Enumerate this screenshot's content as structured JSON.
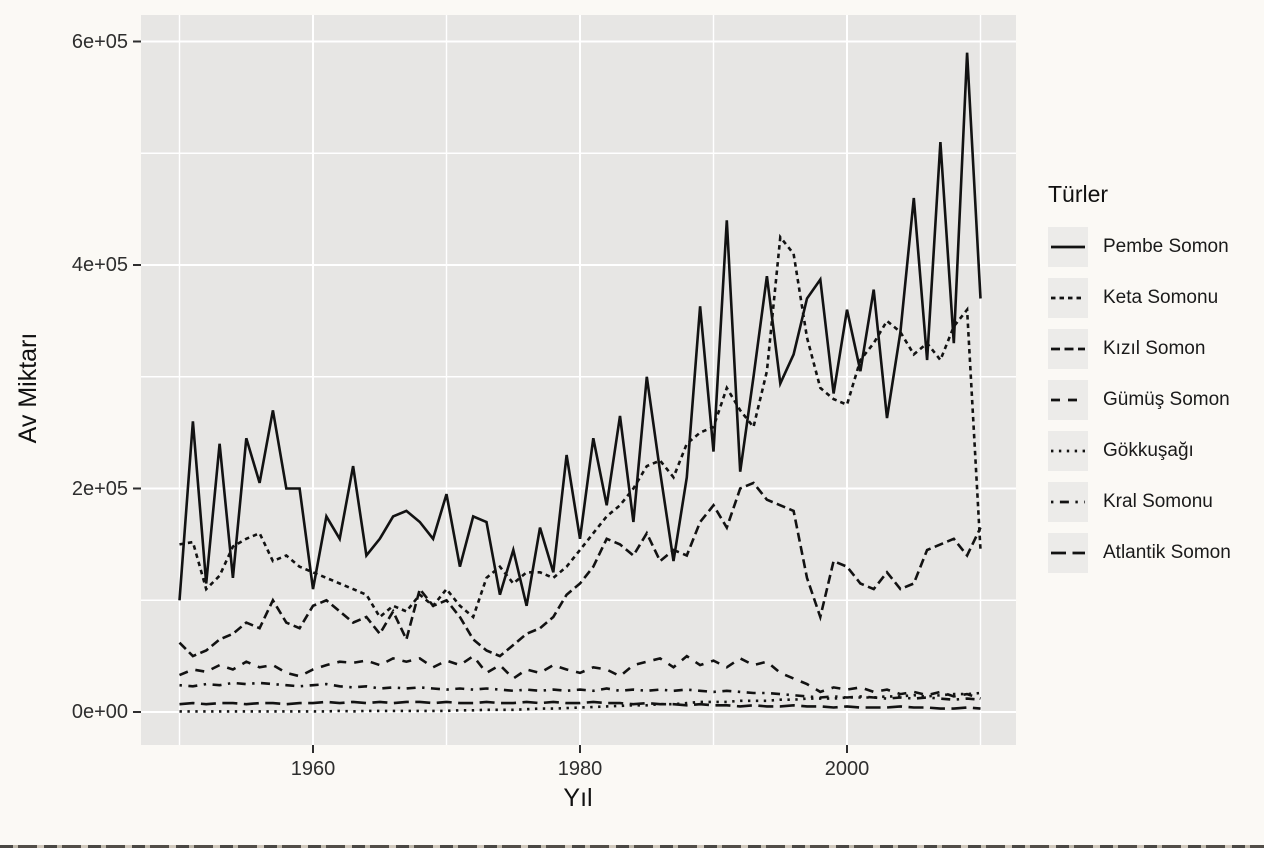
{
  "figure": {
    "bg_color": "#FBF9F5",
    "panel_bg_color": "#E7E6E4",
    "grid_color": "#FFFFFF",
    "line_color": "#121212",
    "tick_color": "#2e2e2e",
    "legend_key_bg": "#ECEBE9"
  },
  "axes": {
    "x_title": "Yıl",
    "y_title": "Av Miktarı",
    "x_ticks": [
      {
        "label": "1960",
        "year": 1960
      },
      {
        "label": "1980",
        "year": 1980
      },
      {
        "label": "2000",
        "year": 2000
      }
    ],
    "y_ticks": [
      {
        "label": "0e+00",
        "value": 0
      },
      {
        "label": "2e+05",
        "value": 200000
      },
      {
        "label": "4e+05",
        "value": 400000
      },
      {
        "label": "6e+05",
        "value": 600000
      }
    ]
  },
  "legend": {
    "title": "Türler",
    "entries": [
      {
        "label": "Pembe Somon",
        "dash": ""
      },
      {
        "label": "Keta Somonu",
        "dash": "4.5 4"
      },
      {
        "label": "Kızıl Somon",
        "dash": "9 4.5"
      },
      {
        "label": "Gümüş Somon",
        "dash": "9 8"
      },
      {
        "label": "Gökkuşağı",
        "dash": "2.4 5.5"
      },
      {
        "label": "Kral Somonu",
        "dash": "2.4 6.5 9 6.5"
      },
      {
        "label": "Atlantik Somon",
        "dash": "15 6.5"
      }
    ]
  },
  "chart_data": {
    "type": "line",
    "title": "",
    "xlabel": "Yıl",
    "ylabel": "Av Miktarı",
    "legend_title": "Türler",
    "legend_position": "right",
    "grid": "on",
    "x_range": [
      1947,
      2013
    ],
    "y_range": [
      -29500,
      623500
    ],
    "x_major_gridlines": [
      1960,
      1980,
      2000
    ],
    "x_minor_gridlines": [
      1950,
      1970,
      1990,
      2010
    ],
    "y_major_gridlines": [
      0,
      200000,
      400000,
      600000
    ],
    "y_minor_gridlines": [
      100000,
      300000,
      500000
    ],
    "x": [
      1950,
      1951,
      1952,
      1953,
      1954,
      1955,
      1956,
      1957,
      1958,
      1959,
      1960,
      1961,
      1962,
      1963,
      1964,
      1965,
      1966,
      1967,
      1968,
      1969,
      1970,
      1971,
      1972,
      1973,
      1974,
      1975,
      1976,
      1977,
      1978,
      1979,
      1980,
      1981,
      1982,
      1983,
      1984,
      1985,
      1986,
      1987,
      1988,
      1989,
      1990,
      1991,
      1992,
      1993,
      1994,
      1995,
      1996,
      1997,
      1998,
      1999,
      2000,
      2001,
      2002,
      2003,
      2004,
      2005,
      2006,
      2007,
      2008,
      2009,
      2010
    ],
    "series": [
      {
        "name": "Pembe Somon",
        "linetype": "solid",
        "dash": "",
        "values": [
          100000,
          260000,
          115000,
          240000,
          120000,
          245000,
          205000,
          270000,
          200000,
          200000,
          110000,
          175000,
          155000,
          220000,
          140000,
          155000,
          175000,
          180000,
          170000,
          155000,
          195000,
          130000,
          175000,
          170000,
          105000,
          145000,
          95000,
          165000,
          125000,
          230000,
          155000,
          245000,
          185000,
          265000,
          170000,
          300000,
          215000,
          135000,
          210000,
          363000,
          233000,
          440000,
          215000,
          300000,
          390000,
          294000,
          320000,
          370000,
          387000,
          285000,
          360000,
          305000,
          378000,
          263000,
          340000,
          460000,
          315000,
          510000,
          330000,
          590000,
          370000
        ]
      },
      {
        "name": "Keta Somonu",
        "linetype": "22",
        "dash": "4.5 4",
        "values": [
          150000,
          152000,
          110000,
          122000,
          148000,
          155000,
          160000,
          135000,
          140000,
          130000,
          125000,
          120000,
          115000,
          110000,
          105000,
          85000,
          95000,
          90000,
          105000,
          95000,
          110000,
          95000,
          85000,
          120000,
          130000,
          115000,
          125000,
          125000,
          120000,
          130000,
          145000,
          160000,
          175000,
          185000,
          200000,
          220000,
          225000,
          210000,
          240000,
          250000,
          255000,
          290000,
          270000,
          255000,
          305000,
          425000,
          410000,
          335000,
          290000,
          280000,
          275000,
          315000,
          330000,
          350000,
          340000,
          320000,
          330000,
          315000,
          345000,
          360000,
          145000
        ]
      },
      {
        "name": "Kızıl Somon",
        "linetype": "42",
        "dash": "9 4.5",
        "values": [
          62000,
          50000,
          55000,
          65000,
          70000,
          80000,
          75000,
          100000,
          80000,
          75000,
          95000,
          100000,
          90000,
          80000,
          85000,
          70000,
          90000,
          65000,
          110000,
          95000,
          100000,
          85000,
          65000,
          55000,
          50000,
          60000,
          70000,
          75000,
          85000,
          105000,
          115000,
          130000,
          155000,
          150000,
          140000,
          160000,
          135000,
          145000,
          140000,
          170000,
          185000,
          165000,
          200000,
          205000,
          190000,
          185000,
          180000,
          120000,
          85000,
          135000,
          130000,
          115000,
          110000,
          125000,
          110000,
          115000,
          145000,
          150000,
          155000,
          140000,
          165000
        ]
      },
      {
        "name": "Gümüş Somon",
        "linetype": "44",
        "dash": "9 8",
        "values": [
          33000,
          38000,
          36000,
          42000,
          38000,
          45000,
          40000,
          42000,
          35000,
          32000,
          38000,
          42000,
          45000,
          44000,
          46000,
          42000,
          48000,
          45000,
          48000,
          40000,
          46000,
          42000,
          50000,
          35000,
          42000,
          30000,
          38000,
          35000,
          42000,
          38000,
          35000,
          40000,
          38000,
          32000,
          42000,
          45000,
          48000,
          40000,
          50000,
          42000,
          46000,
          40000,
          48000,
          42000,
          45000,
          35000,
          30000,
          25000,
          18000,
          22000,
          20000,
          22000,
          18000,
          20000,
          16000,
          18000,
          15000,
          18000,
          14000,
          16000,
          12000
        ]
      },
      {
        "name": "Gökkuşağı",
        "linetype": "13",
        "dash": "2.4 5.5",
        "values": [
          500,
          500,
          500,
          500,
          500,
          500,
          500,
          500,
          500,
          500,
          500,
          500,
          1000,
          500,
          1000,
          1000,
          1000,
          1000,
          1000,
          1000,
          1000,
          1500,
          1500,
          2000,
          2000,
          2000,
          2500,
          3000,
          3000,
          3500,
          4000,
          4500,
          5000,
          5500,
          6000,
          6000,
          7000,
          7000,
          8000,
          9000,
          9000,
          9000,
          10000,
          10000,
          10000,
          11000,
          11000,
          12000,
          12000,
          12000,
          13000,
          13000,
          13000,
          14000,
          14000,
          15000,
          14000,
          15000,
          16000,
          16000,
          17000
        ]
      },
      {
        "name": "Kral Somonu",
        "linetype": "1343",
        "dash": "2.4 6.5 9 6.5",
        "values": [
          24000,
          23000,
          25000,
          24000,
          26000,
          25000,
          26000,
          25000,
          24000,
          23000,
          24000,
          25000,
          23000,
          22000,
          23000,
          21000,
          22000,
          21000,
          22000,
          21000,
          20000,
          21000,
          20000,
          21000,
          20000,
          19000,
          20000,
          19000,
          20000,
          19000,
          20000,
          19000,
          21000,
          19000,
          20000,
          19000,
          20000,
          19000,
          20000,
          19000,
          18000,
          19000,
          18000,
          17000,
          17000,
          16000,
          15000,
          14000,
          13000,
          14000,
          13000,
          14000,
          13000,
          12000,
          13000,
          12000,
          13000,
          12000,
          11000,
          12000,
          11000
        ]
      },
      {
        "name": "Atlantik Somon",
        "linetype": "73",
        "dash": "15 6.5",
        "values": [
          7000,
          8000,
          7000,
          8000,
          8000,
          7000,
          8000,
          8000,
          7000,
          8000,
          8000,
          9000,
          8000,
          9000,
          8000,
          9000,
          8000,
          9000,
          9000,
          8000,
          9000,
          8000,
          8000,
          9000,
          8000,
          8000,
          9000,
          8000,
          9000,
          8000,
          8000,
          9000,
          8000,
          8000,
          7000,
          8000,
          7000,
          7000,
          6000,
          7000,
          6000,
          6000,
          5000,
          6000,
          5000,
          5000,
          6000,
          5000,
          5000,
          4000,
          5000,
          4000,
          4000,
          4000,
          5000,
          4000,
          4000,
          3000,
          3000,
          4000,
          3000
        ]
      }
    ]
  }
}
